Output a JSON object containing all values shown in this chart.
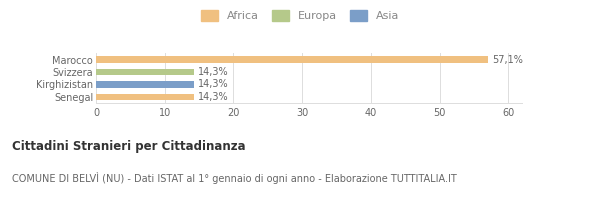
{
  "categories": [
    "Marocco",
    "Svizzera",
    "Kirghizistan",
    "Senegal"
  ],
  "values": [
    57.1,
    14.3,
    14.3,
    14.3
  ],
  "labels": [
    "57,1%",
    "14,3%",
    "14,3%",
    "14,3%"
  ],
  "colors": [
    "#f0c080",
    "#b5c98a",
    "#7b9ec8",
    "#f0c080"
  ],
  "legend_items": [
    {
      "label": "Africa",
      "color": "#f0c080"
    },
    {
      "label": "Europa",
      "color": "#b5c98a"
    },
    {
      "label": "Asia",
      "color": "#7b9ec8"
    }
  ],
  "xlim": [
    0,
    62
  ],
  "xticks": [
    0,
    10,
    20,
    30,
    40,
    50,
    60
  ],
  "title_bold": "Cittadini Stranieri per Cittadinanza",
  "subtitle": "COMUNE DI BELVÌ (NU) - Dati ISTAT al 1° gennaio di ogni anno - Elaborazione TUTTITALIA.IT",
  "title_fontsize": 8.5,
  "subtitle_fontsize": 7,
  "bar_height": 0.55,
  "label_fontsize": 7,
  "ytick_fontsize": 7,
  "xtick_fontsize": 7,
  "background_color": "#ffffff",
  "grid_color": "#dddddd"
}
